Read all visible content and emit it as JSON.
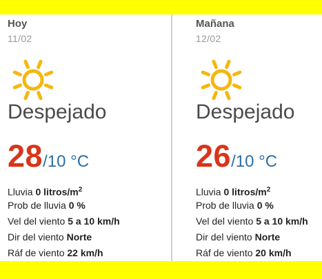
{
  "colors": {
    "banner": "#ffff00",
    "max_temp": "#d9351a",
    "min_temp": "#2b6fa5",
    "sun": "#f5b70f"
  },
  "days": [
    {
      "name": "Hoy",
      "date": "11/02",
      "icon": "sun-icon",
      "condition": "Despejado",
      "temp_max": "28",
      "temp_min": "/10 °C",
      "rain_label": "Lluvia",
      "rain_value": "0 litros/m",
      "rain_unit_sup": "2",
      "rain_prob_label": "Prob de lluvia",
      "rain_prob_value": "0 %",
      "wind_speed_label": "Vel del viento",
      "wind_speed_value": "5 a 10 km/h",
      "wind_dir_label": "Dir del viento",
      "wind_dir_value": "Norte",
      "gust_label": "Ráf de viento",
      "gust_value": "22 km/h"
    },
    {
      "name": "Mañana",
      "date": "12/02",
      "icon": "sun-icon",
      "condition": "Despejado",
      "temp_max": "26",
      "temp_min": "/10 °C",
      "rain_label": "Lluvia",
      "rain_value": "0 litros/m",
      "rain_unit_sup": "2",
      "rain_prob_label": "Prob de lluvia",
      "rain_prob_value": "0 %",
      "wind_speed_label": "Vel del viento",
      "wind_speed_value": "5 a 10 km/h",
      "wind_dir_label": "Dir del viento",
      "wind_dir_value": "Norte",
      "gust_label": "Ráf de viento",
      "gust_value": "20 km/h"
    }
  ]
}
